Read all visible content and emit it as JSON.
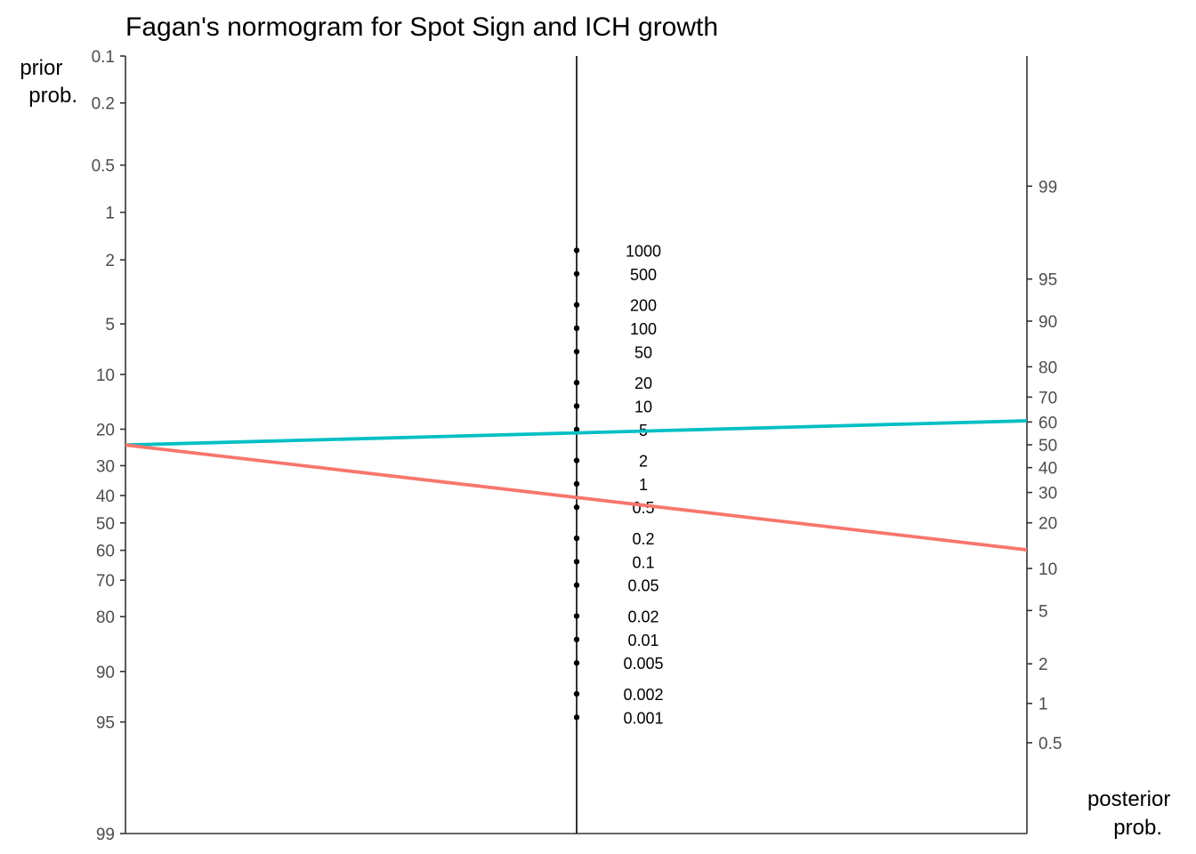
{
  "chart_data": {
    "type": "line",
    "title": "Fagan's normogram for Spot Sign and ICH growth",
    "left_axis": {
      "title_lines": [
        "prior",
        "prob."
      ],
      "scale": "logit",
      "direction": "top-to-bottom",
      "range": [
        0.1,
        99
      ],
      "ticks": [
        0.1,
        0.2,
        0.5,
        1,
        2,
        5,
        10,
        20,
        30,
        40,
        50,
        60,
        70,
        80,
        90,
        95,
        99
      ]
    },
    "right_axis": {
      "title_lines": [
        "posterior",
        "prob."
      ],
      "scale": "logit",
      "direction": "bottom-to-top",
      "range": [
        0.1,
        99.9
      ],
      "ticks": [
        0.5,
        1,
        2,
        5,
        10,
        20,
        30,
        40,
        50,
        60,
        70,
        80,
        90,
        95,
        99
      ]
    },
    "likelihood_ratio_axis": {
      "scale": "log",
      "values": [
        1000,
        500,
        200,
        100,
        50,
        20,
        10,
        5,
        2,
        1,
        0.5,
        0.2,
        0.1,
        0.05,
        0.02,
        0.01,
        0.005,
        0.002,
        0.001
      ],
      "labels": [
        "1000",
        "500",
        "200",
        "100",
        "50",
        "20",
        "10",
        "5",
        "2",
        "1",
        "0.5",
        "0.2",
        "0.1",
        "0.05",
        "0.02",
        "0.01",
        "0.005",
        "0.002",
        "0.001"
      ]
    },
    "series": [
      {
        "prior_probability": 24,
        "likelihood_ratio": 4.85,
        "posterior_probability": 60.5,
        "color": "#00BFC4"
      },
      {
        "prior_probability": 24,
        "likelihood_ratio": 0.49,
        "posterior_probability": 13.4,
        "color": "#F8766D"
      }
    ],
    "grid": false,
    "legend": "none"
  }
}
